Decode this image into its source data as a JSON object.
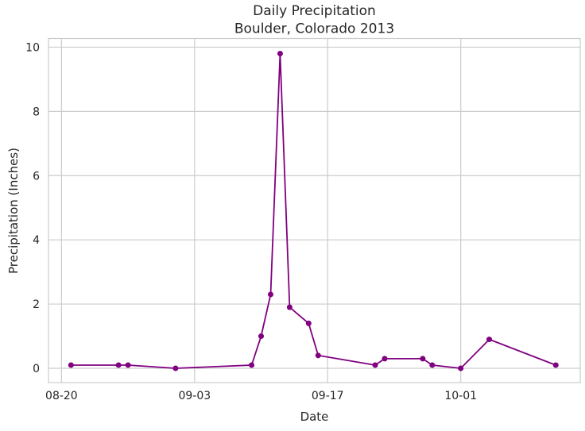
{
  "chart_data": {
    "type": "line",
    "title": "Daily Precipitation",
    "subtitle": "Boulder, Colorado 2013",
    "xlabel": "Date",
    "ylabel": "Precipitation (Inches)",
    "grid": true,
    "legend": "none",
    "colors": {
      "line": "#800080",
      "marker": "#800080",
      "grid": "#cccccc",
      "spine": "#cccccc",
      "text": "#262626",
      "background": "#ffffff"
    },
    "x_ticks": [
      {
        "label": "08-20",
        "day": 0
      },
      {
        "label": "09-03",
        "day": 14
      },
      {
        "label": "09-17",
        "day": 28
      },
      {
        "label": "10-01",
        "day": 42
      }
    ],
    "y_ticks": [
      0,
      2,
      4,
      6,
      8,
      10
    ],
    "xlim_days": [
      -1.37,
      54.57
    ],
    "ylim": [
      -0.445,
      10.27
    ],
    "series": [
      {
        "name": "daily-precipitation-2013",
        "marker": "circle",
        "points": [
          {
            "date": "08-21",
            "day": 1,
            "value": 0.1
          },
          {
            "date": "08-26",
            "day": 6,
            "value": 0.1
          },
          {
            "date": "08-27",
            "day": 7,
            "value": 0.1
          },
          {
            "date": "09-01",
            "day": 12,
            "value": 0.0
          },
          {
            "date": "09-09",
            "day": 20,
            "value": 0.1
          },
          {
            "date": "09-10",
            "day": 21,
            "value": 1.0
          },
          {
            "date": "09-11",
            "day": 22,
            "value": 2.3
          },
          {
            "date": "09-12",
            "day": 23,
            "value": 9.8
          },
          {
            "date": "09-13",
            "day": 24,
            "value": 1.9
          },
          {
            "date": "09-15",
            "day": 26,
            "value": 1.4
          },
          {
            "date": "09-16",
            "day": 27,
            "value": 0.4
          },
          {
            "date": "09-22",
            "day": 33,
            "value": 0.1
          },
          {
            "date": "09-23",
            "day": 34,
            "value": 0.3
          },
          {
            "date": "09-27",
            "day": 38,
            "value": 0.3
          },
          {
            "date": "09-28",
            "day": 39,
            "value": 0.1
          },
          {
            "date": "10-01",
            "day": 42,
            "value": 0.0
          },
          {
            "date": "10-04",
            "day": 45,
            "value": 0.9
          },
          {
            "date": "10-11",
            "day": 52,
            "value": 0.1
          }
        ]
      }
    ]
  }
}
